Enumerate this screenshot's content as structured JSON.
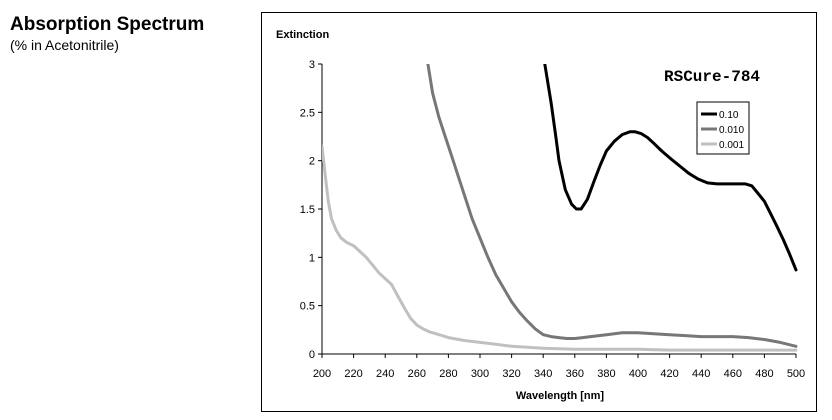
{
  "heading": {
    "title": "Absorption Spectrum",
    "subtitle": "(% in Acetonitrile)"
  },
  "chart_data": {
    "type": "line",
    "title": "",
    "product_label": "RSCure-784",
    "ylabel": "Extinction",
    "xlabel": "Wavelength [nm]",
    "xlim": [
      200,
      500
    ],
    "ylim": [
      0,
      3
    ],
    "x_ticks": [
      200,
      220,
      240,
      260,
      280,
      300,
      320,
      340,
      360,
      380,
      400,
      420,
      440,
      460,
      480,
      500
    ],
    "y_ticks": [
      0,
      0.5,
      1,
      1.5,
      2,
      2.5,
      3
    ],
    "y_tick_labels": [
      "0",
      "0.5",
      "1",
      "1.5",
      "2",
      "2.5",
      "3"
    ],
    "grid": false,
    "legend_position": "top-right",
    "series": [
      {
        "name": "0.10",
        "color": "#000000",
        "x": [
          341,
          345,
          348,
          350,
          354,
          358,
          361,
          364,
          368,
          372,
          376,
          380,
          385,
          390,
          395,
          398,
          402,
          406,
          410,
          415,
          420,
          426,
          432,
          438,
          444,
          450,
          456,
          462,
          468,
          472,
          476,
          480,
          484,
          488,
          492,
          496,
          500
        ],
        "y": [
          3.0,
          2.6,
          2.25,
          2.0,
          1.7,
          1.55,
          1.5,
          1.5,
          1.6,
          1.78,
          1.95,
          2.1,
          2.2,
          2.27,
          2.3,
          2.3,
          2.28,
          2.24,
          2.18,
          2.1,
          2.03,
          1.95,
          1.87,
          1.81,
          1.77,
          1.76,
          1.76,
          1.76,
          1.76,
          1.74,
          1.66,
          1.58,
          1.45,
          1.32,
          1.18,
          1.03,
          0.87
        ]
      },
      {
        "name": "0.010",
        "color": "#777777",
        "x": [
          267,
          270,
          274,
          278,
          282,
          286,
          290,
          295,
          300,
          305,
          310,
          315,
          320,
          325,
          330,
          335,
          340,
          345,
          350,
          355,
          360,
          365,
          370,
          380,
          390,
          400,
          410,
          420,
          430,
          440,
          450,
          460,
          470,
          480,
          490,
          500
        ],
        "y": [
          3.0,
          2.7,
          2.45,
          2.25,
          2.05,
          1.85,
          1.65,
          1.4,
          1.2,
          1.0,
          0.82,
          0.68,
          0.54,
          0.43,
          0.34,
          0.26,
          0.2,
          0.18,
          0.17,
          0.16,
          0.16,
          0.17,
          0.18,
          0.2,
          0.22,
          0.22,
          0.21,
          0.2,
          0.19,
          0.18,
          0.18,
          0.18,
          0.17,
          0.15,
          0.12,
          0.08
        ]
      },
      {
        "name": "0.001",
        "color": "#c0c0c0",
        "x": [
          200,
          202,
          204,
          206,
          209,
          212,
          216,
          220,
          224,
          228,
          232,
          236,
          240,
          244,
          248,
          252,
          256,
          260,
          264,
          268,
          272,
          276,
          280,
          290,
          300,
          310,
          320,
          330,
          340,
          360,
          380,
          400,
          420,
          440,
          460,
          480,
          500
        ],
        "y": [
          2.15,
          1.85,
          1.58,
          1.4,
          1.28,
          1.2,
          1.15,
          1.12,
          1.06,
          1.0,
          0.92,
          0.84,
          0.78,
          0.72,
          0.6,
          0.48,
          0.37,
          0.3,
          0.26,
          0.23,
          0.21,
          0.19,
          0.17,
          0.14,
          0.12,
          0.1,
          0.08,
          0.07,
          0.06,
          0.05,
          0.05,
          0.05,
          0.04,
          0.04,
          0.04,
          0.04,
          0.04
        ]
      }
    ]
  }
}
